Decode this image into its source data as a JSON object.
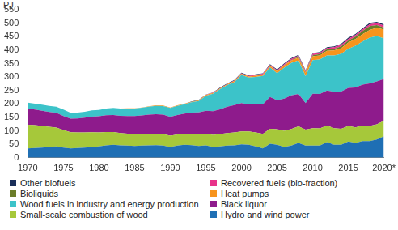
{
  "chart_data": {
    "type": "area",
    "y_label": "PJ",
    "stacked": true,
    "grid": false,
    "categories": [
      "1970",
      null,
      null,
      null,
      null,
      "1975",
      null,
      null,
      null,
      null,
      "1980",
      null,
      null,
      null,
      null,
      "1985",
      null,
      null,
      null,
      null,
      "1990",
      null,
      null,
      null,
      null,
      "1995",
      null,
      null,
      null,
      null,
      "2000",
      null,
      null,
      null,
      null,
      "2005",
      null,
      null,
      null,
      null,
      "2010",
      null,
      null,
      null,
      null,
      "2015",
      null,
      null,
      null,
      null,
      "2020*"
    ],
    "ylim": [
      0,
      550
    ],
    "yticks": [
      0,
      50,
      100,
      150,
      200,
      250,
      300,
      350,
      400,
      450,
      500,
      550
    ],
    "series": [
      {
        "name": "Hydro and wind power",
        "color": "#1f6fb4",
        "values": [
          35,
          36,
          38,
          40,
          42,
          38,
          35,
          36,
          38,
          40,
          42,
          46,
          48,
          46,
          45,
          44,
          45,
          46,
          47,
          45,
          40,
          45,
          48,
          47,
          44,
          46,
          40,
          42,
          45,
          46,
          50,
          48,
          42,
          35,
          52,
          48,
          40,
          45,
          55,
          45,
          45,
          45,
          58,
          48,
          48,
          60,
          55,
          62,
          62,
          68,
          80
        ]
      },
      {
        "name": "Small-scale combustion of wood",
        "color": "#a6c83a",
        "values": [
          88,
          85,
          80,
          75,
          70,
          65,
          60,
          58,
          56,
          55,
          52,
          50,
          48,
          46,
          45,
          45,
          44,
          44,
          43,
          43,
          42,
          42,
          42,
          43,
          43,
          44,
          45,
          46,
          47,
          48,
          48,
          50,
          52,
          54,
          56,
          58,
          60,
          62,
          62,
          60,
          65,
          64,
          62,
          62,
          60,
          58,
          58,
          58,
          56,
          56,
          58
        ]
      },
      {
        "name": "Black liquor",
        "color": "#8e1b8c",
        "values": [
          60,
          58,
          57,
          55,
          55,
          52,
          50,
          52,
          55,
          58,
          60,
          62,
          63,
          64,
          65,
          66,
          68,
          70,
          72,
          72,
          70,
          72,
          74,
          78,
          82,
          85,
          88,
          92,
          98,
          102,
          105,
          100,
          106,
          110,
          118,
          108,
          120,
          125,
          120,
          98,
          128,
          128,
          130,
          135,
          138,
          142,
          148,
          152,
          158,
          160,
          155
        ]
      },
      {
        "name": "Wood fuels in industry and energy production",
        "color": "#3cc3c9",
        "values": [
          22,
          22,
          22,
          23,
          23,
          24,
          22,
          22,
          22,
          23,
          24,
          25,
          26,
          27,
          28,
          28,
          29,
          30,
          31,
          32,
          33,
          34,
          35,
          38,
          42,
          55,
          65,
          75,
          80,
          85,
          105,
          100,
          100,
          105,
          110,
          100,
          115,
          120,
          125,
          100,
          125,
          128,
          130,
          135,
          140,
          145,
          155,
          160,
          170,
          168,
          150
        ]
      },
      {
        "name": "Heat pumps",
        "color": "#f7941d",
        "values": [
          0,
          0,
          0,
          0,
          0,
          0,
          0,
          0,
          0,
          0,
          0,
          0,
          0,
          0,
          1,
          1,
          1,
          1,
          2,
          2,
          2,
          2,
          2,
          2,
          3,
          3,
          3,
          3,
          3,
          4,
          4,
          4,
          5,
          5,
          6,
          7,
          8,
          9,
          10,
          12,
          14,
          15,
          17,
          19,
          21,
          23,
          25,
          27,
          29,
          31,
          33
        ]
      },
      {
        "name": "Bioliquids",
        "color": "#6b7d2a",
        "values": [
          0,
          0,
          0,
          0,
          0,
          0,
          0,
          0,
          0,
          0,
          0,
          0,
          0,
          0,
          0,
          0,
          0,
          0,
          0,
          0,
          0,
          0,
          0,
          0,
          0,
          0,
          0,
          0,
          0,
          0,
          0,
          0,
          0,
          0,
          0,
          1,
          1,
          2,
          3,
          3,
          4,
          5,
          6,
          6,
          7,
          8,
          9,
          12,
          14,
          10,
          8
        ]
      },
      {
        "name": "Recovered fuels (bio-fraction)",
        "color": "#e8338b",
        "values": [
          0,
          0,
          0,
          0,
          0,
          0,
          0,
          0,
          0,
          0,
          0,
          0,
          0,
          0,
          0,
          0,
          0,
          0,
          0,
          0,
          0,
          0,
          0,
          0,
          0,
          1,
          1,
          1,
          1,
          2,
          2,
          2,
          3,
          3,
          3,
          3,
          4,
          4,
          4,
          4,
          5,
          5,
          5,
          6,
          6,
          6,
          6,
          6,
          7,
          7,
          7
        ]
      },
      {
        "name": "Other biofuels",
        "color": "#1a2f5a",
        "values": [
          0,
          0,
          0,
          0,
          0,
          0,
          0,
          0,
          0,
          0,
          0,
          0,
          0,
          0,
          0,
          0,
          0,
          0,
          0,
          0,
          0,
          0,
          0,
          1,
          1,
          1,
          1,
          2,
          2,
          2,
          2,
          2,
          2,
          2,
          3,
          3,
          3,
          3,
          3,
          3,
          3,
          3,
          3,
          3,
          4,
          4,
          4,
          4,
          5,
          5,
          5
        ]
      }
    ]
  }
}
